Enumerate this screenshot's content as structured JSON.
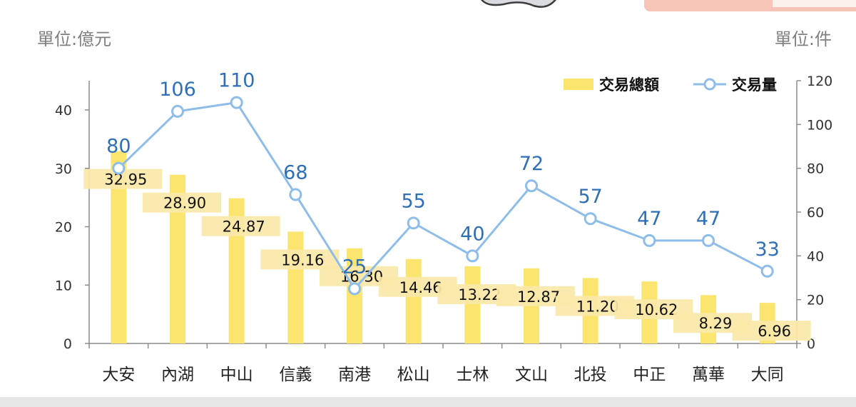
{
  "chart_data": {
    "type": "bar",
    "left_unit": "單位:億元",
    "right_unit": "單位:件",
    "categories": [
      "大安",
      "內湖",
      "中山",
      "信義",
      "南港",
      "松山",
      "士林",
      "文山",
      "北投",
      "中正",
      "萬華",
      "大同"
    ],
    "series": [
      {
        "name": "交易總額",
        "type": "bar",
        "axis": "left",
        "color": "#fbe56f",
        "label_bg": "#fbe8a8",
        "values": [
          32.95,
          28.9,
          24.87,
          19.16,
          16.3,
          14.46,
          13.22,
          12.87,
          11.2,
          10.62,
          8.29,
          6.96
        ],
        "labels": [
          "32.95",
          "28.90",
          "24.87",
          "19.16",
          "16.30",
          "14.46",
          "13.22",
          "12.87",
          "11.20",
          "10.62",
          "8.29",
          "6.96"
        ]
      },
      {
        "name": "交易量",
        "type": "line",
        "axis": "right",
        "color": "#8ebde9",
        "label_color": "#2f6fb8",
        "values": [
          80,
          106,
          110,
          68,
          25,
          55,
          40,
          72,
          57,
          47,
          47,
          33
        ],
        "labels": [
          "80",
          "106",
          "110",
          "68",
          "25",
          "55",
          "40",
          "72",
          "57",
          "47",
          "47",
          "33"
        ]
      }
    ],
    "y_left": {
      "min": 0,
      "max": 45,
      "ticks": [
        "0",
        "10",
        "20",
        "30",
        "40"
      ]
    },
    "y_right": {
      "min": 0,
      "max": 120,
      "ticks": [
        "0",
        "20",
        "40",
        "60",
        "80",
        "100",
        "120"
      ]
    },
    "grid": false,
    "legend_position": "top-right"
  }
}
